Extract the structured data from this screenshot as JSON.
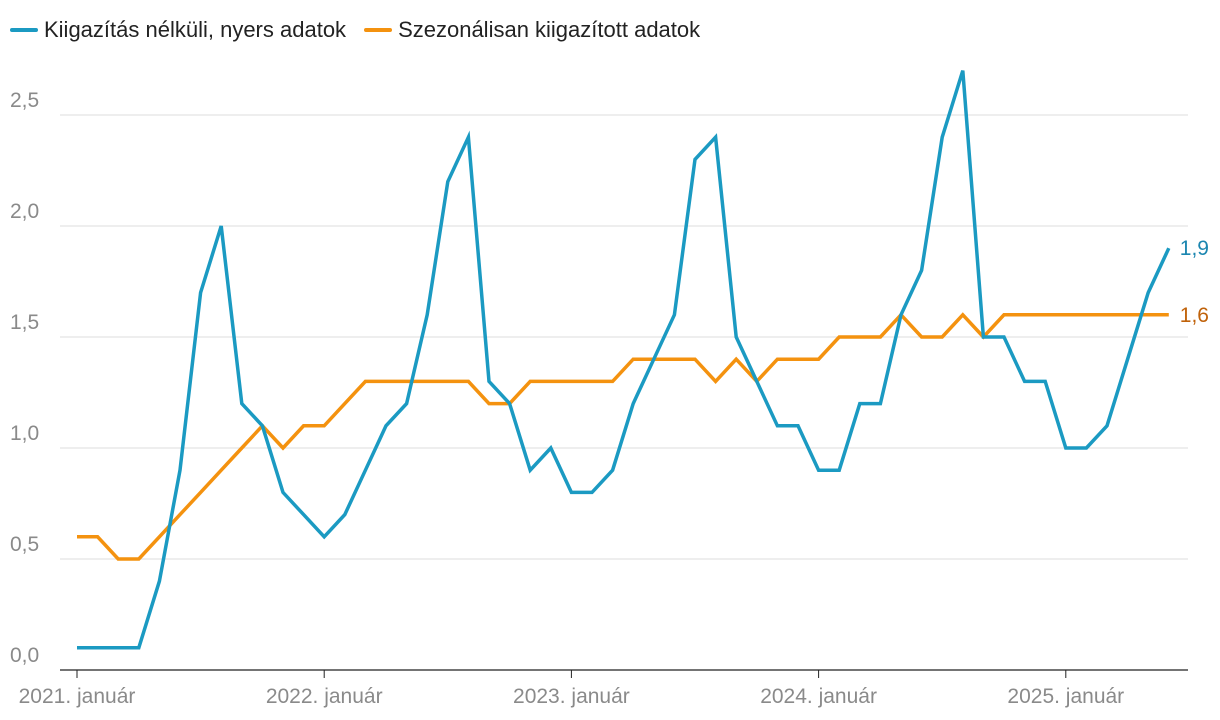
{
  "chart_data": {
    "type": "line",
    "title": "",
    "xlabel": "",
    "ylabel": "",
    "ylim": [
      0,
      2.7
    ],
    "yticks": [
      0,
      0.5,
      1.0,
      1.5,
      2.0,
      2.5
    ],
    "ytick_labels": [
      "0,0",
      "0,5",
      "1,0",
      "1,5",
      "2,0",
      "2,5"
    ],
    "xtick_labels": [
      "2021. január",
      "2022. január",
      "2023. január",
      "2024. január",
      "2025. január"
    ],
    "xtick_positions": [
      0,
      12,
      24,
      36,
      48
    ],
    "legend_position": "top-left",
    "grid": "horizontal",
    "series": [
      {
        "name": "Kiigazítás nélküli, nyers adatok",
        "color": "#1b9ac2",
        "end_label": "1,9",
        "end_label_color": "#1b86b0",
        "values": [
          0.1,
          0.1,
          0.1,
          0.1,
          0.4,
          0.9,
          1.7,
          2.0,
          1.2,
          1.1,
          0.8,
          0.7,
          0.6,
          0.7,
          0.9,
          1.1,
          1.2,
          1.6,
          2.2,
          2.4,
          1.3,
          1.2,
          0.9,
          1.0,
          0.8,
          0.8,
          0.9,
          1.2,
          1.4,
          1.6,
          2.3,
          2.4,
          1.5,
          1.3,
          1.1,
          1.1,
          0.9,
          0.9,
          1.2,
          1.2,
          1.6,
          1.8,
          2.4,
          2.7,
          1.5,
          1.5,
          1.3,
          1.3,
          1.0,
          1.0,
          1.1,
          1.4,
          1.7,
          1.9
        ]
      },
      {
        "name": "Szezonálisan kiigazított adatok",
        "color": "#f4920f",
        "end_label": "1,6",
        "end_label_color": "#c0620a",
        "values": [
          0.6,
          0.6,
          0.5,
          0.5,
          0.6,
          0.7,
          0.8,
          0.9,
          1.0,
          1.1,
          1.0,
          1.1,
          1.1,
          1.2,
          1.3,
          1.3,
          1.3,
          1.3,
          1.3,
          1.3,
          1.2,
          1.2,
          1.3,
          1.3,
          1.3,
          1.3,
          1.3,
          1.4,
          1.4,
          1.4,
          1.4,
          1.3,
          1.4,
          1.3,
          1.4,
          1.4,
          1.4,
          1.5,
          1.5,
          1.5,
          1.6,
          1.5,
          1.5,
          1.6,
          1.5,
          1.6,
          1.6,
          1.6,
          1.6,
          1.6,
          1.6,
          1.6,
          1.6,
          1.6
        ]
      }
    ]
  }
}
